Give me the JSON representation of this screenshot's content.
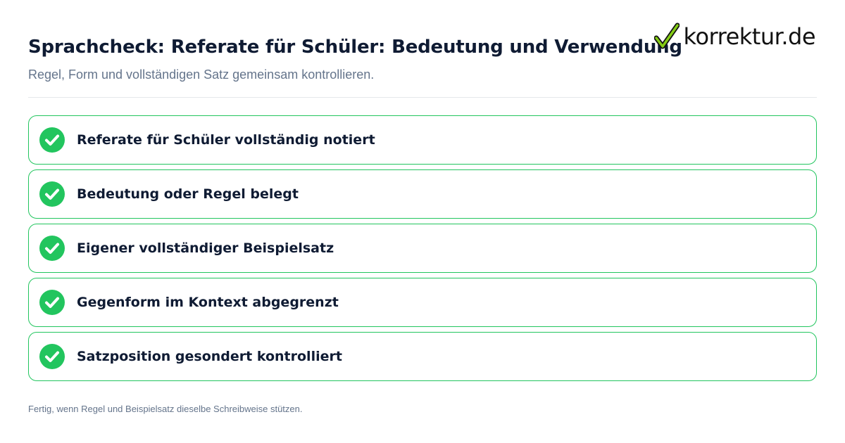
{
  "header": {
    "title": "Sprachcheck: Referate für Schüler: Bedeutung und Verwendung",
    "subtitle": "Regel, Form und vollständigen Satz gemeinsam kontrollieren."
  },
  "logo": {
    "text": "korrektur.de",
    "icon": "checkmark-icon",
    "icon_color": "#16a34a"
  },
  "checklist": {
    "items": [
      {
        "label": "Referate für Schüler vollständig notiert",
        "checked": true
      },
      {
        "label": "Bedeutung oder Regel belegt",
        "checked": true
      },
      {
        "label": "Eigener vollständiger Beispielsatz",
        "checked": true
      },
      {
        "label": "Gegenform im Kontext abgegrenzt",
        "checked": true
      },
      {
        "label": "Satzposition gesondert kontrolliert",
        "checked": true
      }
    ]
  },
  "footer": {
    "note": "Fertig, wenn Regel und Beispielsatz dieselbe Schreibweise stützen."
  },
  "colors": {
    "accent": "#22c55e",
    "title": "#0f1b33",
    "muted": "#64748b",
    "divider": "#e5e7eb"
  }
}
